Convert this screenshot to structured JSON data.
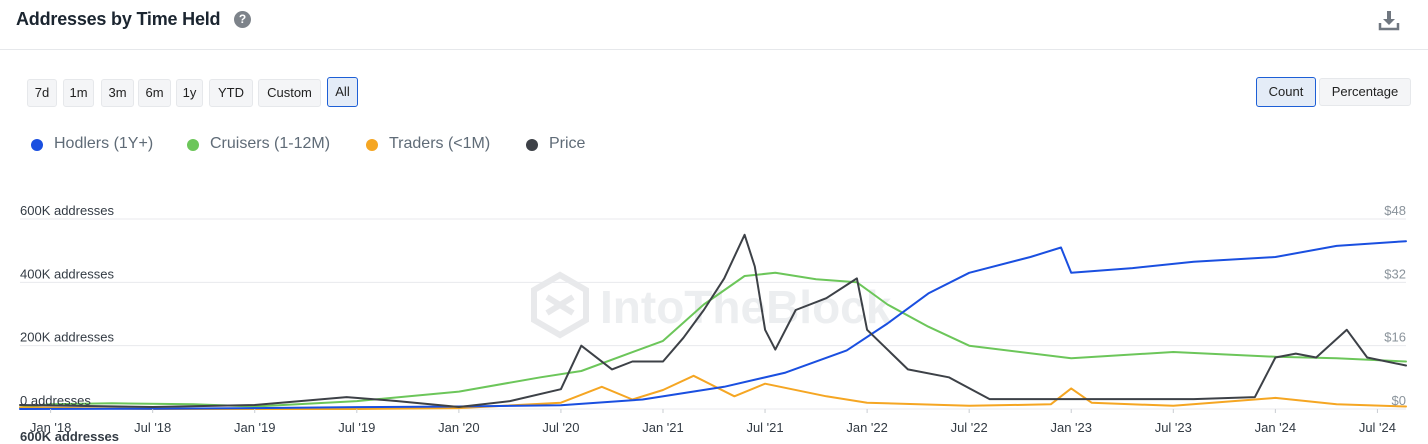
{
  "header": {
    "title": "Addresses by Time Held",
    "help_icon": "question-circle-icon",
    "download_icon": "download-icon"
  },
  "range_buttons": [
    {
      "label": "7d",
      "active": false
    },
    {
      "label": "1m",
      "active": false
    },
    {
      "label": "3m",
      "active": false
    },
    {
      "label": "6m",
      "active": false
    },
    {
      "label": "1y",
      "active": false
    },
    {
      "label": "YTD",
      "active": false
    },
    {
      "label": "Custom",
      "active": false
    },
    {
      "label": "All",
      "active": true
    }
  ],
  "mode_buttons": [
    {
      "label": "Count",
      "active": true
    },
    {
      "label": "Percentage",
      "active": false
    }
  ],
  "legend": [
    {
      "label": "Hodlers (1Y+)",
      "color": "#1a4fe0"
    },
    {
      "label": "Cruisers (1-12M)",
      "color": "#6cc65a"
    },
    {
      "label": "Traders (<1M)",
      "color": "#f5a623"
    },
    {
      "label": "Price",
      "color": "#3d4147"
    }
  ],
  "watermark": "IntoTheBlock",
  "cut_off_label": "600K addresses",
  "chart_data": {
    "type": "line",
    "title": "Addresses by Time Held",
    "x_tick_labels": [
      "Jan '18",
      "Jul '18",
      "Jan '19",
      "Jul '19",
      "Jan '20",
      "Jul '20",
      "Jan '21",
      "Jul '21",
      "Jan '22",
      "Jul '22",
      "Jan '23",
      "Jul '23",
      "Jan '24",
      "Jul '24"
    ],
    "y_left_ticks": [
      "0 addresses",
      "200K addresses",
      "400K addresses",
      "600K addresses"
    ],
    "y_left_range": [
      0,
      600000
    ],
    "y_right_ticks": [
      "$0",
      "$16",
      "$32",
      "$48"
    ],
    "y_right_range": [
      0,
      48
    ],
    "x_range": [
      2017.85,
      2024.64
    ],
    "grid": true,
    "legend_position": "top-left",
    "series": [
      {
        "name": "Hodlers (1Y+)",
        "axis": "left",
        "x": [
          2017.85,
          2018.5,
          2019.0,
          2019.5,
          2020.0,
          2020.5,
          2020.9,
          2021.3,
          2021.6,
          2021.9,
          2022.1,
          2022.3,
          2022.5,
          2022.8,
          2022.95,
          2023.0,
          2023.3,
          2023.6,
          2024.0,
          2024.3,
          2024.64
        ],
        "values": [
          0,
          1000,
          3000,
          6000,
          8000,
          12000,
          30000,
          70000,
          115000,
          185000,
          270000,
          365000,
          430000,
          480000,
          510000,
          430000,
          445000,
          465000,
          480000,
          515000,
          530000
        ]
      },
      {
        "name": "Cruisers (1-12M)",
        "axis": "left",
        "x": [
          2017.85,
          2018.0,
          2018.3,
          2018.7,
          2019.0,
          2019.5,
          2020.0,
          2020.4,
          2020.6,
          2021.0,
          2021.2,
          2021.4,
          2021.55,
          2021.75,
          2021.95,
          2022.1,
          2022.3,
          2022.5,
          2023.0,
          2023.5,
          2024.0,
          2024.3,
          2024.64
        ],
        "values": [
          5000,
          15000,
          18000,
          15000,
          8000,
          25000,
          55000,
          100000,
          120000,
          215000,
          330000,
          420000,
          430000,
          410000,
          400000,
          330000,
          260000,
          200000,
          160000,
          180000,
          165000,
          160000,
          150000
        ]
      },
      {
        "name": "Traders (<1M)",
        "axis": "left",
        "x": [
          2017.85,
          2018.5,
          2019.5,
          2020.0,
          2020.5,
          2020.7,
          2020.85,
          2021.0,
          2021.15,
          2021.35,
          2021.5,
          2021.8,
          2022.0,
          2022.5,
          2022.9,
          2023.0,
          2023.1,
          2023.5,
          2024.0,
          2024.3,
          2024.64
        ],
        "values": [
          5000,
          0,
          0,
          3000,
          20000,
          70000,
          30000,
          60000,
          105000,
          40000,
          80000,
          40000,
          20000,
          10000,
          15000,
          65000,
          20000,
          10000,
          35000,
          15000,
          8000
        ]
      },
      {
        "name": "Price",
        "axis": "right",
        "x": [
          2017.85,
          2018.5,
          2019.0,
          2019.45,
          2019.7,
          2020.0,
          2020.25,
          2020.5,
          2020.6,
          2020.75,
          2020.85,
          2021.0,
          2021.1,
          2021.2,
          2021.3,
          2021.4,
          2021.45,
          2021.5,
          2021.55,
          2021.65,
          2021.8,
          2021.95,
          2022.0,
          2022.2,
          2022.4,
          2022.6,
          2022.8,
          2023.0,
          2023.3,
          2023.6,
          2023.9,
          2024.0,
          2024.1,
          2024.2,
          2024.35,
          2024.45,
          2024.64
        ],
        "values": [
          1,
          0.5,
          1,
          3,
          2,
          0.5,
          2,
          5,
          16,
          10,
          12,
          12,
          18,
          25,
          33,
          44,
          36,
          20,
          15,
          25,
          28,
          33,
          20,
          10,
          8,
          2.5,
          2.5,
          2.5,
          2.5,
          2.5,
          3,
          13,
          14,
          13,
          20,
          13,
          11
        ]
      }
    ]
  }
}
